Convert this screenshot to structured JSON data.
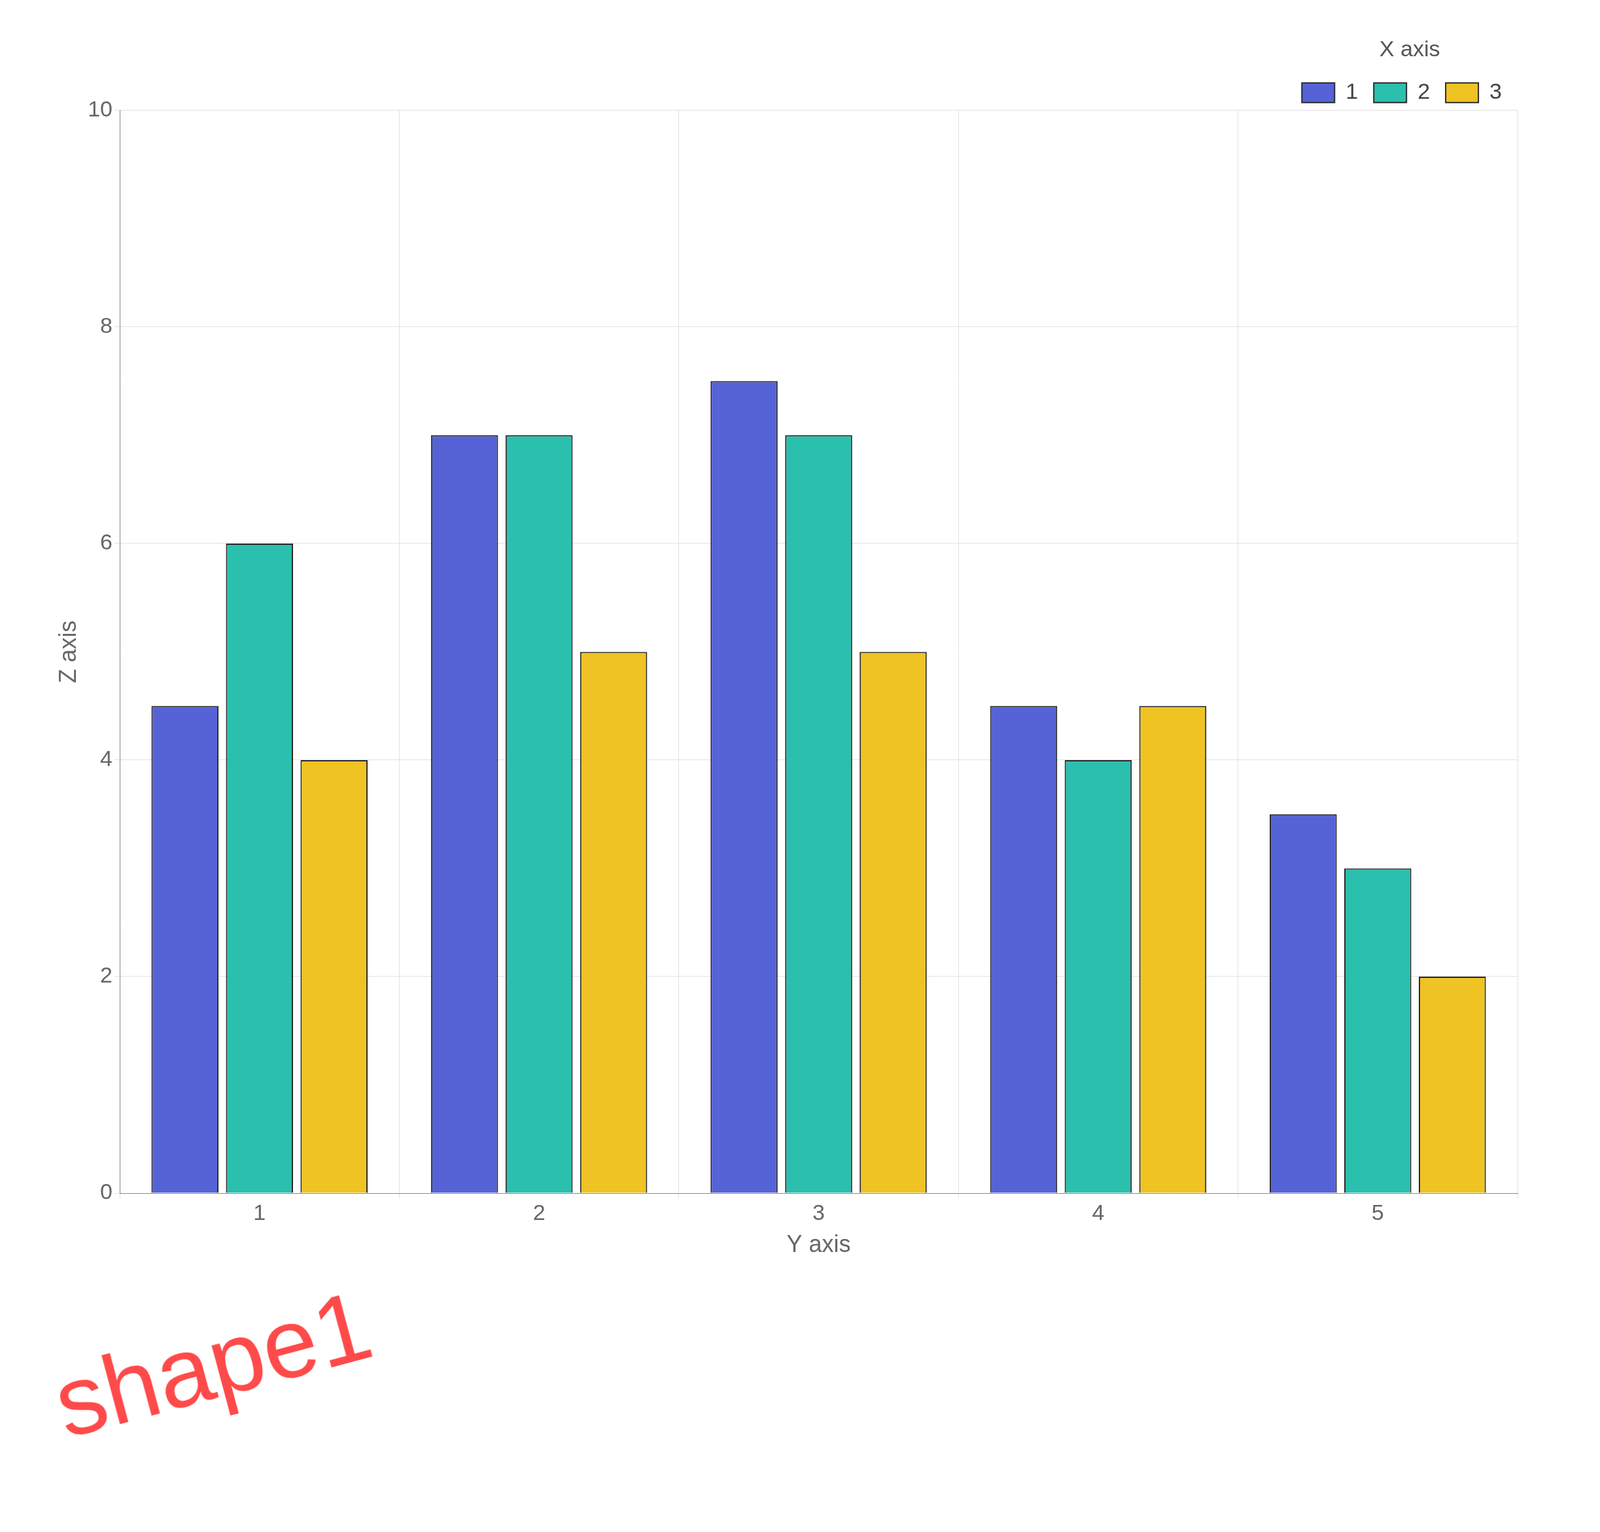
{
  "chart_data": {
    "type": "bar",
    "x_label": "Y axis",
    "y_label": "Z axis",
    "legend_title": "X axis",
    "categories": [
      1,
      2,
      3,
      4,
      5
    ],
    "series": [
      {
        "name": "1",
        "color": "#5563d6",
        "values": [
          4.5,
          7,
          7.5,
          4.5,
          3.5
        ]
      },
      {
        "name": "2",
        "color": "#2bbfae",
        "values": [
          6,
          7,
          7,
          4,
          3
        ]
      },
      {
        "name": "3",
        "color": "#efc323",
        "values": [
          4,
          5,
          5,
          4.5,
          2
        ]
      }
    ],
    "ylim": [
      0,
      10
    ],
    "yticks": [
      0,
      2,
      4,
      6,
      8,
      10
    ],
    "grid": true,
    "legend": "top-right",
    "annotations": [
      {
        "text": "shape1"
      }
    ]
  }
}
